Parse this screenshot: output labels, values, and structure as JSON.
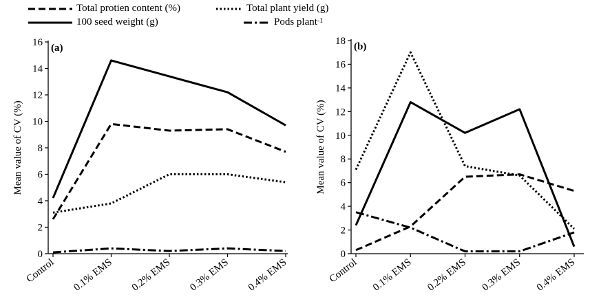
{
  "legend": [
    {
      "label": "Total protien content (%)",
      "style": "dashed"
    },
    {
      "label": "Total plant yield (g)",
      "style": "dotted"
    },
    {
      "label": "100 seed weight (g)",
      "style": "solid"
    },
    {
      "label": "Pods plant",
      "superscript": "-1",
      "style": "dashdot"
    }
  ],
  "chart_data": [
    {
      "type": "line",
      "panel_label": "(a)",
      "ylabel": "Mean value of CV (%)",
      "categories": [
        "Control",
        "0.1% EMS",
        "0.2% EMS",
        "0.3% EMS",
        "0.4% EMS"
      ],
      "ylim": [
        0,
        16
      ],
      "yticks": [
        0,
        2,
        4,
        6,
        8,
        10,
        12,
        14,
        16
      ],
      "grid": false,
      "legend_position": "top",
      "series": [
        {
          "name": "Total protien content (%)",
          "style": "dashed",
          "values": [
            2.6,
            9.8,
            9.3,
            9.4,
            7.7
          ]
        },
        {
          "name": "Total plant yield (g)",
          "style": "dotted",
          "values": [
            3.1,
            3.8,
            6.0,
            6.0,
            5.4
          ]
        },
        {
          "name": "100 seed weight (g)",
          "style": "solid",
          "values": [
            4.2,
            14.6,
            13.4,
            12.2,
            9.7
          ]
        },
        {
          "name": "Pods plant-1",
          "style": "dashdot",
          "values": [
            0.1,
            0.4,
            0.2,
            0.4,
            0.2
          ]
        }
      ]
    },
    {
      "type": "line",
      "panel_label": "(b)",
      "ylabel": "Mean value of CV (%)",
      "categories": [
        "Control",
        "0.1% EMS",
        "0.2% EMS",
        "0.3% EMS",
        "0.4% EMS"
      ],
      "ylim": [
        0,
        18
      ],
      "yticks": [
        0,
        2,
        4,
        6,
        8,
        10,
        12,
        14,
        16,
        18
      ],
      "grid": false,
      "legend_position": "top",
      "series": [
        {
          "name": "Total protien content (%)",
          "style": "dashed",
          "values": [
            0.3,
            2.3,
            6.5,
            6.7,
            5.3
          ]
        },
        {
          "name": "Total plant yield (g)",
          "style": "dotted",
          "values": [
            7.1,
            17.0,
            7.4,
            6.6,
            2.1
          ]
        },
        {
          "name": "100 seed weight (g)",
          "style": "solid",
          "values": [
            2.4,
            12.8,
            10.2,
            12.2,
            0.6
          ]
        },
        {
          "name": "Pods plant-1",
          "style": "dashdot",
          "values": [
            3.5,
            2.2,
            0.2,
            0.2,
            1.8
          ]
        }
      ]
    }
  ]
}
